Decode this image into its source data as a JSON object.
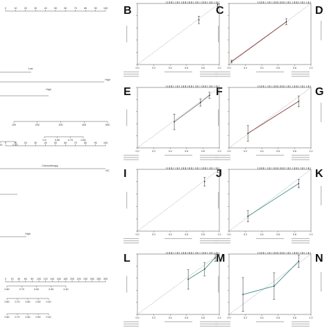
{
  "nomogram": {
    "top_scale_ticks": [
      "0",
      "10",
      "20",
      "30",
      "40",
      "50",
      "60",
      "70",
      "80",
      "90",
      "100"
    ],
    "level_low": "Low",
    "level_high_1": "High",
    "scale_row_1": [
      "100",
      "200",
      "300",
      "400",
      "500"
    ],
    "prob_row_1a": [
      "0.20",
      "0.15"
    ],
    "prob_row_1b": [
      "0.9",
      "0.80",
      "0.70",
      "0.60"
    ],
    "mid_scale_ticks": [
      "0",
      "10",
      "20",
      "30",
      "40",
      "50",
      "60",
      "70",
      "80",
      "90",
      "100"
    ],
    "level_chemo": "Chemotherapy",
    "level_nc": "NC",
    "level_high_2": "High",
    "scale_row_2": [
      "0",
      "20",
      "40",
      "60",
      "80",
      "100",
      "120",
      "140",
      "160",
      "180",
      "200",
      "220",
      "240",
      "260",
      "280",
      "300"
    ],
    "prob_row_2a": [
      "0.80",
      "0.70",
      "0.60",
      "0.50",
      "0.40"
    ],
    "prob_row_2b": [
      "0.80",
      "0.70",
      "0.60",
      "0.50",
      "0.40"
    ],
    "prob_row_2c": [
      "0.80",
      "0.70",
      "0.60",
      "0.50",
      "0.40"
    ]
  },
  "chart_data": [
    {
      "type": "scatter",
      "panel": "B",
      "xlim": [
        0,
        1
      ],
      "ylim": [
        0,
        1
      ],
      "xticks": [
        "0.0",
        "0.2",
        "0.4",
        "0.6",
        "0.8",
        "1.0"
      ],
      "x": [
        0.75,
        0.98
      ],
      "y": [
        0.73,
        0.98
      ],
      "err": [
        0.06,
        0.03
      ]
    },
    {
      "type": "line",
      "panel": "C",
      "xlim": [
        0,
        1
      ],
      "ylim": [
        0,
        1
      ],
      "xticks": [
        "0.0",
        "0.2",
        "0.4",
        "0.6",
        "0.8",
        "1.0"
      ],
      "x": [
        0.03,
        0.7
      ],
      "y": [
        0.05,
        0.7
      ],
      "err": [
        0.02,
        0.05
      ]
    },
    {
      "type": "line",
      "panel": "E",
      "xlim": [
        0,
        1
      ],
      "ylim": [
        0,
        1
      ],
      "xticks": [
        "0.0",
        "0.2",
        "0.4",
        "0.6",
        "0.8",
        "1.0"
      ],
      "x": [
        0.45,
        0.77,
        0.88
      ],
      "y": [
        0.43,
        0.75,
        0.87
      ],
      "err": [
        0.13,
        0.06,
        0.05
      ]
    },
    {
      "type": "line",
      "panel": "F",
      "xlim": [
        0,
        1
      ],
      "ylim": [
        0,
        1
      ],
      "xticks": [
        "0.0",
        "0.2",
        "0.4",
        "0.6",
        "0.8",
        "1.0"
      ],
      "x": [
        0.23,
        0.85
      ],
      "y": [
        0.24,
        0.77
      ],
      "err": [
        0.13,
        0.09
      ]
    },
    {
      "type": "scatter",
      "panel": "I",
      "xlim": [
        0,
        1
      ],
      "ylim": [
        0,
        1
      ],
      "xticks": [
        "0.0",
        "0.2",
        "0.4",
        "0.6",
        "0.8",
        "1.0"
      ],
      "x": [
        0.82,
        0.98
      ],
      "y": [
        0.8,
        0.98
      ],
      "err": [
        0.07,
        0.03
      ]
    },
    {
      "type": "line",
      "panel": "J",
      "xlim": [
        0,
        1
      ],
      "ylim": [
        0,
        1
      ],
      "xticks": [
        "0.0",
        "0.2",
        "0.4",
        "0.6",
        "0.8",
        "1.0"
      ],
      "x": [
        0.23,
        0.85
      ],
      "y": [
        0.24,
        0.77
      ],
      "err": [
        0.09,
        0.07
      ]
    },
    {
      "type": "line",
      "panel": "L",
      "xlim": [
        0,
        1
      ],
      "ylim": [
        0,
        1
      ],
      "xticks": [
        "0.0",
        "0.2",
        "0.4",
        "0.6",
        "0.8",
        "1.0"
      ],
      "x": [
        0.62,
        0.82,
        0.95
      ],
      "y": [
        0.58,
        0.75,
        0.94
      ],
      "err": [
        0.16,
        0.11,
        0.06
      ]
    },
    {
      "type": "line",
      "panel": "M",
      "xlim": [
        0,
        1
      ],
      "ylim": [
        0,
        1
      ],
      "xticks": [
        "0.0",
        "0.2",
        "0.4",
        "0.6",
        "0.8",
        "1.0"
      ],
      "x": [
        0.17,
        0.55,
        0.85
      ],
      "y": [
        0.33,
        0.47,
        0.88
      ],
      "err": [
        0.28,
        0.22,
        0.1
      ]
    }
  ],
  "panel_letters": [
    "B",
    "C",
    "D",
    "E",
    "F",
    "G",
    "I",
    "J",
    "K",
    "L",
    "M",
    "N"
  ]
}
